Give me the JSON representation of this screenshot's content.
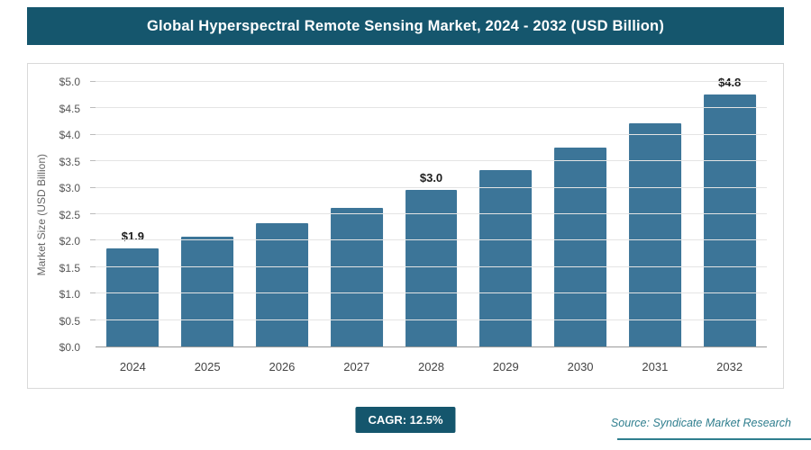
{
  "header": {
    "title": "Global Hyperspectral Remote Sensing Market, 2024 - 2032 (USD Billion)"
  },
  "chart_data": {
    "type": "bar",
    "title": "Global Hyperspectral Remote Sensing Market, 2024 - 2032 (USD Billion)",
    "categories": [
      "2024",
      "2025",
      "2026",
      "2027",
      "2028",
      "2029",
      "2030",
      "2031",
      "2032"
    ],
    "values": [
      1.85,
      2.08,
      2.33,
      2.62,
      2.96,
      3.34,
      3.76,
      4.22,
      4.76
    ],
    "value_labels": [
      "$1.9",
      "",
      "",
      "",
      "$3.0",
      "",
      "",
      "",
      "$4.8"
    ],
    "ylabel": "Market Size (USD Billion)",
    "xlabel": "",
    "ylim": [
      0,
      5
    ],
    "ytick_step": 0.5,
    "ytick_prefix": "$",
    "grid": true,
    "legend": false,
    "bar_color": "#3c7598",
    "cagr": "12.5%"
  },
  "footer": {
    "cagr_label": "CAGR: 12.5%",
    "source": "Source: Syndicate Market Research"
  },
  "colors": {
    "header_bg": "#15566d",
    "bar": "#3c7598",
    "accent_teal": "#2f7e8e"
  }
}
